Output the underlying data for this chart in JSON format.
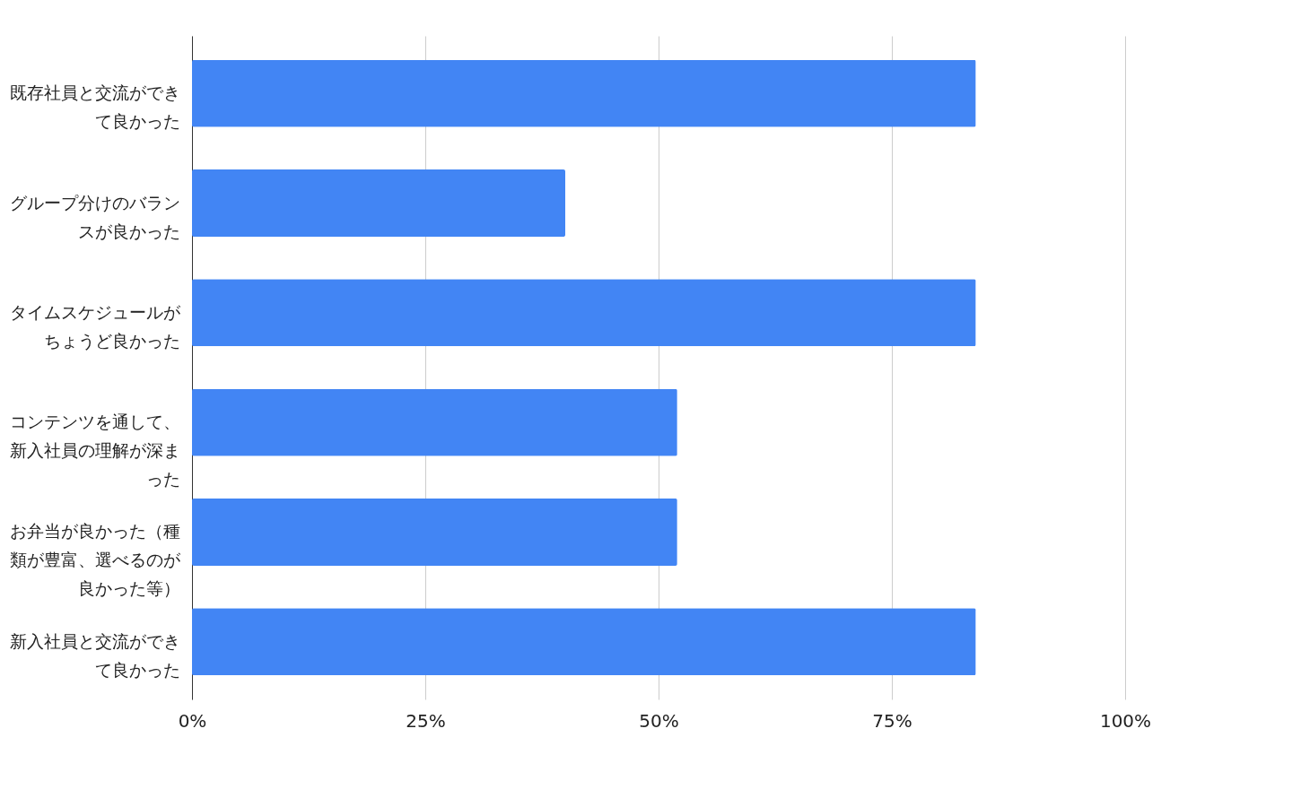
{
  "chart_data": {
    "type": "bar",
    "orientation": "horizontal",
    "categories": [
      "既存社員と交流ができて良かった",
      "グループ分けのバランスが良かった",
      "タイムスケジュールがちょうど良かった",
      "コンテンツを通して、新入社員の理解が深まった",
      "お弁当が良かった（種類が豊富、選べるのが良かった等）",
      "新入社員と交流ができて良かった"
    ],
    "series": [
      {
        "color": "#4285f4",
        "values": [
          84,
          40,
          84,
          52,
          52,
          84
        ]
      }
    ],
    "xlim": [
      0,
      100
    ],
    "xticks": [
      {
        "value": 0,
        "label": "0%"
      },
      {
        "value": 25,
        "label": "25%"
      },
      {
        "value": 50,
        "label": "50%"
      },
      {
        "value": 75,
        "label": "75%"
      },
      {
        "value": 100,
        "label": "100%"
      }
    ],
    "grid": "x"
  }
}
